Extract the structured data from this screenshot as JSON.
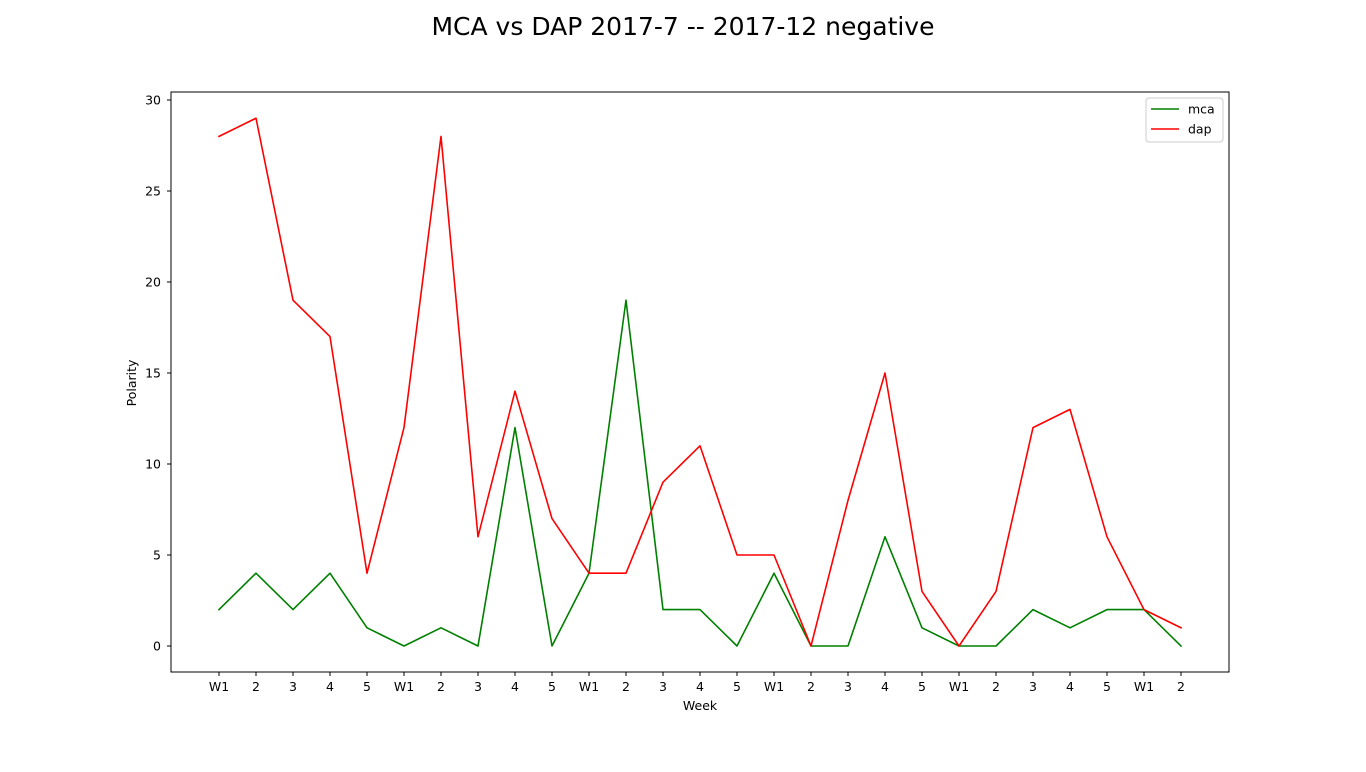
{
  "chart_data": {
    "type": "line",
    "title": "MCA vs DAP 2017-7 -- 2017-12 negative",
    "xlabel": "Week",
    "ylabel": "Polarity",
    "categories": [
      "W1",
      "2",
      "3",
      "4",
      "5",
      "W1",
      "2",
      "3",
      "4",
      "5",
      "W1",
      "2",
      "3",
      "4",
      "5",
      "W1",
      "2",
      "3",
      "4",
      "5",
      "W1",
      "2",
      "3",
      "4",
      "5",
      "W1",
      "2"
    ],
    "series": [
      {
        "name": "mca",
        "color": "#008000",
        "values": [
          2,
          4,
          2,
          4,
          1,
          0,
          1,
          0,
          12,
          0,
          4,
          19,
          2,
          2,
          0,
          4,
          0,
          0,
          6,
          1,
          0,
          0,
          2,
          1,
          2,
          2,
          0
        ]
      },
      {
        "name": "dap",
        "color": "#ff0000",
        "values": [
          28,
          29,
          19,
          17,
          4,
          12,
          28,
          6,
          14,
          7,
          4,
          4,
          9,
          11,
          5,
          5,
          0,
          8,
          15,
          3,
          0,
          3,
          12,
          13,
          6,
          2,
          1
        ]
      }
    ],
    "ylim": [
      -1.45,
      30.45
    ],
    "yticks": [
      0,
      5,
      10,
      15,
      20,
      25,
      30
    ],
    "grid": false,
    "legend_position": "top-right"
  }
}
